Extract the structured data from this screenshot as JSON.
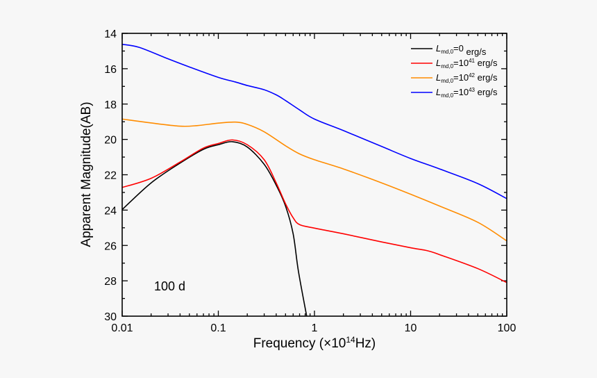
{
  "chart_data": {
    "type": "line",
    "title": "",
    "xlabel": {
      "main": "Frequency (×10",
      "sup": "14",
      "tail": "Hz)"
    },
    "ylabel": "Apparent Magnitude(AB)",
    "xscale": "log",
    "xlim": [
      0.01,
      100
    ],
    "ylim": [
      30,
      14
    ],
    "y_inverted": true,
    "x_ticks": [
      "0.01",
      "0.1",
      "1",
      "10",
      "100"
    ],
    "y_ticks": [
      "14",
      "16",
      "18",
      "20",
      "22",
      "24",
      "26",
      "28",
      "30"
    ],
    "grid": false,
    "legend_position": "top-right",
    "annotation": "100 d",
    "series": [
      {
        "name": "Lmd,0=0 erg/s",
        "legend": {
          "symbol": "L",
          "sub": "md,0",
          "value": "=0",
          "sup": "",
          "unit": " erg/s"
        },
        "color": "#000000",
        "x": [
          0.01,
          0.02,
          0.04,
          0.07,
          0.1,
          0.14,
          0.2,
          0.3,
          0.4,
          0.5,
          0.6,
          0.68,
          0.83
        ],
        "y": [
          23.97,
          22.46,
          21.34,
          20.56,
          20.3,
          20.13,
          20.43,
          21.41,
          22.59,
          23.77,
          25.34,
          27.44,
          30.0
        ]
      },
      {
        "name": "Lmd,0=10^41 erg/s",
        "legend": {
          "symbol": "L",
          "sub": "md,0",
          "value": "=10",
          "sup": "41",
          "unit": " erg/s"
        },
        "color": "#ff0000",
        "x": [
          0.01,
          0.02,
          0.04,
          0.07,
          0.1,
          0.14,
          0.2,
          0.3,
          0.4,
          0.5,
          0.6,
          0.7,
          1,
          2,
          5,
          10,
          15,
          20,
          50,
          100
        ],
        "y": [
          22.72,
          22.2,
          21.28,
          20.49,
          20.23,
          20.03,
          20.3,
          21.15,
          22.46,
          23.64,
          24.43,
          24.82,
          25.02,
          25.34,
          25.8,
          26.13,
          26.3,
          26.52,
          27.31,
          28.1
        ]
      },
      {
        "name": "Lmd,0=10^42 erg/s",
        "legend": {
          "symbol": "L",
          "sub": "md,0",
          "value": "=10",
          "sup": "42",
          "unit": " erg/s"
        },
        "color": "#ff8c00",
        "x": [
          0.01,
          0.02,
          0.04,
          0.06,
          0.1,
          0.15,
          0.2,
          0.3,
          0.5,
          0.7,
          1,
          2,
          5,
          10,
          20,
          50,
          100
        ],
        "y": [
          18.85,
          19.07,
          19.25,
          19.22,
          19.08,
          19.02,
          19.15,
          19.57,
          20.36,
          20.82,
          21.15,
          21.67,
          22.46,
          23.1,
          23.77,
          24.69,
          25.74
        ]
      },
      {
        "name": "Lmd,0=10^43 erg/s",
        "legend": {
          "symbol": "L",
          "sub": "md,0",
          "value": "=10",
          "sup": "43",
          "unit": " erg/s"
        },
        "color": "#0000ff",
        "x": [
          0.01,
          0.015,
          0.03,
          0.05,
          0.1,
          0.15,
          0.2,
          0.3,
          0.4,
          0.5,
          0.7,
          1,
          2,
          5,
          10,
          20,
          50,
          100
        ],
        "y": [
          14.62,
          14.79,
          15.44,
          15.9,
          16.49,
          16.75,
          16.95,
          17.19,
          17.48,
          17.8,
          18.33,
          18.85,
          19.5,
          20.4,
          21.08,
          21.67,
          22.5,
          23.35
        ]
      }
    ]
  }
}
